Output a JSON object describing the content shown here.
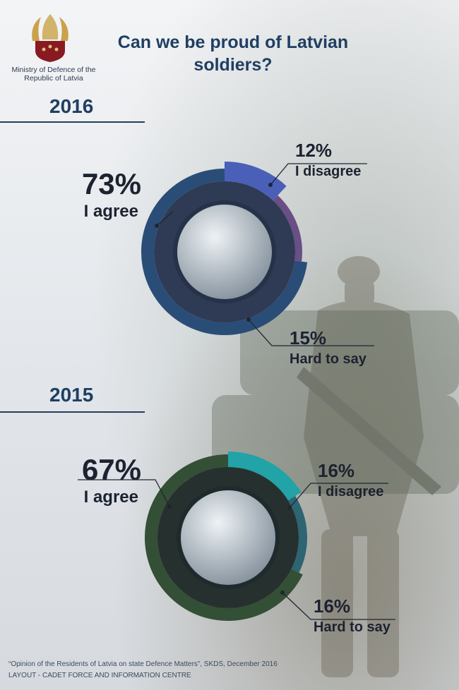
{
  "organization": "Ministry of Defence of the Republic of Latvia",
  "title": "Can we be proud of Latvian soldiers?",
  "chart_data": [
    {
      "type": "pie",
      "year": "2016",
      "categories": [
        "I agree",
        "I disagree",
        "Hard to say"
      ],
      "values": [
        73,
        12,
        15
      ],
      "value_labels": [
        "73%",
        "12%",
        "15%"
      ],
      "colors": [
        "#2a4d78",
        "#4a5fb8",
        "#6a4e86"
      ]
    },
    {
      "type": "pie",
      "year": "2015",
      "categories": [
        "I agree",
        "I disagree",
        "Hard to say"
      ],
      "values": [
        67,
        16,
        16
      ],
      "value_labels": [
        "67%",
        "16%",
        "16%"
      ],
      "colors": [
        "#334f35",
        "#21a3a7",
        "#2d6573"
      ]
    }
  ],
  "footer": {
    "source": "“Opinion of the Residents of Latvia on state Defence Matters”, SKDS, December 2016",
    "layout": "LAYOUT - CADET FORCE AND INFORMATION CENTRE"
  }
}
